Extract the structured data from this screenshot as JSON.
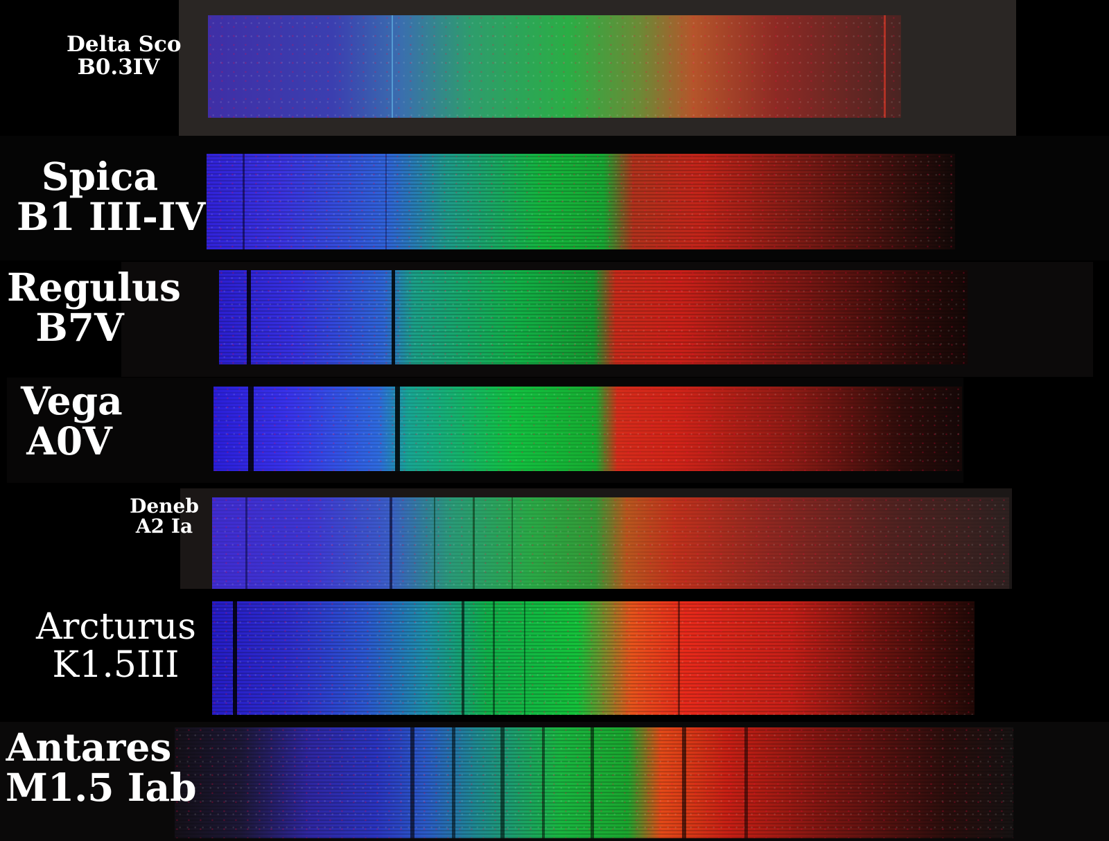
{
  "stars": [
    {
      "name": "Delta Sco",
      "type": "B0.3IV"
    },
    {
      "name": "Spica",
      "type": "B1 III-IV"
    },
    {
      "name": "Regulus",
      "type": "B7V"
    },
    {
      "name": "Vega",
      "type": "A0V"
    },
    {
      "name": "Deneb",
      "type": "A2 Ia"
    },
    {
      "name": "Arcturus",
      "type": "K1.5III"
    },
    {
      "name": "Antares",
      "type": "M1.5 Iab"
    }
  ],
  "colors": {
    "background": "#000000",
    "label": "#ffffff",
    "violet": "#3a2dd8",
    "blue": "#2f6be0",
    "green": "#12c23a",
    "red": "#e2281c"
  }
}
